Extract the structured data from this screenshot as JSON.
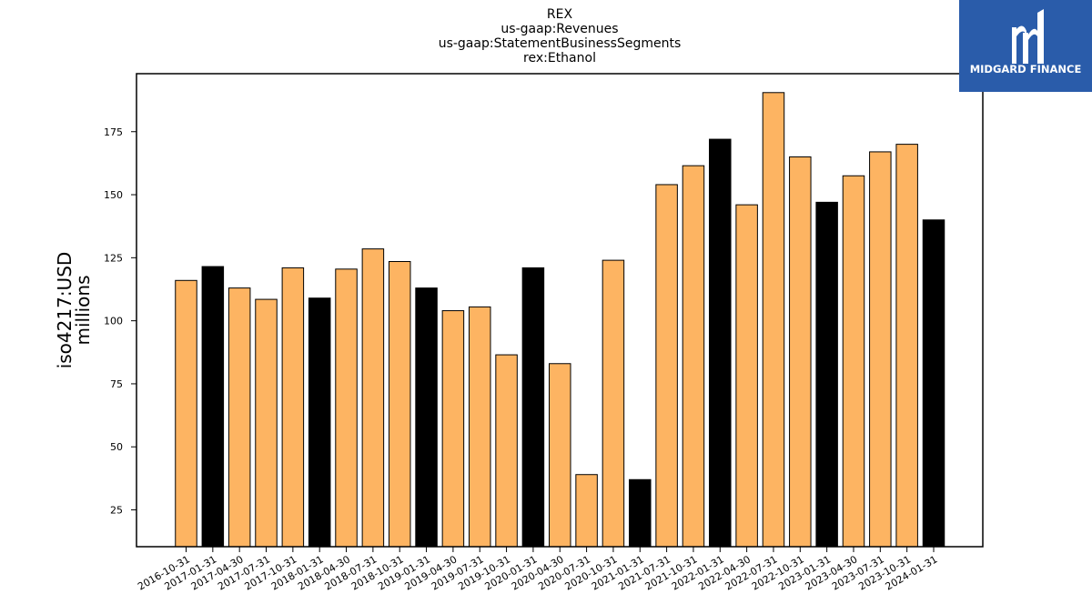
{
  "chart_data": {
    "type": "bar",
    "title_lines": [
      "REX",
      "us-gaap:Revenues",
      "us-gaap:StatementBusinessSegments",
      "rex:Ethanol"
    ],
    "ylabel_lines": [
      "iso4217:USD",
      "millions"
    ],
    "xlabel": "",
    "categories": [
      "2016-10-31",
      "2017-01-31",
      "2017-04-30",
      "2017-07-31",
      "2017-10-31",
      "2018-01-31",
      "2018-04-30",
      "2018-07-31",
      "2018-10-31",
      "2019-01-31",
      "2019-04-30",
      "2019-07-31",
      "2019-10-31",
      "2020-01-31",
      "2020-04-30",
      "2020-07-31",
      "2020-10-31",
      "2021-01-31",
      "2021-07-31",
      "2021-10-31",
      "2022-01-31",
      "2022-04-30",
      "2022-07-31",
      "2022-10-31",
      "2023-01-31",
      "2023-04-30",
      "2023-07-31",
      "2023-10-31",
      "2024-01-31"
    ],
    "values": [
      116,
      121.5,
      113,
      108.5,
      121,
      109,
      120.5,
      128.5,
      123.5,
      113,
      104,
      105.5,
      86.5,
      121,
      83,
      39,
      124,
      37,
      154,
      161.5,
      172,
      146,
      190.5,
      165,
      147,
      157.5,
      167,
      170,
      140
    ],
    "bar_colors": [
      "#fdb462",
      "#000000",
      "#fdb462",
      "#fdb462",
      "#fdb462",
      "#000000",
      "#fdb462",
      "#fdb462",
      "#fdb462",
      "#000000",
      "#fdb462",
      "#fdb462",
      "#fdb462",
      "#000000",
      "#fdb462",
      "#fdb462",
      "#fdb462",
      "#000000",
      "#fdb462",
      "#fdb462",
      "#000000",
      "#fdb462",
      "#fdb462",
      "#fdb462",
      "#000000",
      "#fdb462",
      "#fdb462",
      "#fdb462",
      "#000000"
    ],
    "yticks": [
      25,
      50,
      75,
      100,
      125,
      150,
      175
    ],
    "ylim": [
      10.4,
      198
    ],
    "grid": false,
    "legend": "none"
  },
  "logo": {
    "text": "MIDGARD FINANCE",
    "background": "#2a5caa"
  }
}
